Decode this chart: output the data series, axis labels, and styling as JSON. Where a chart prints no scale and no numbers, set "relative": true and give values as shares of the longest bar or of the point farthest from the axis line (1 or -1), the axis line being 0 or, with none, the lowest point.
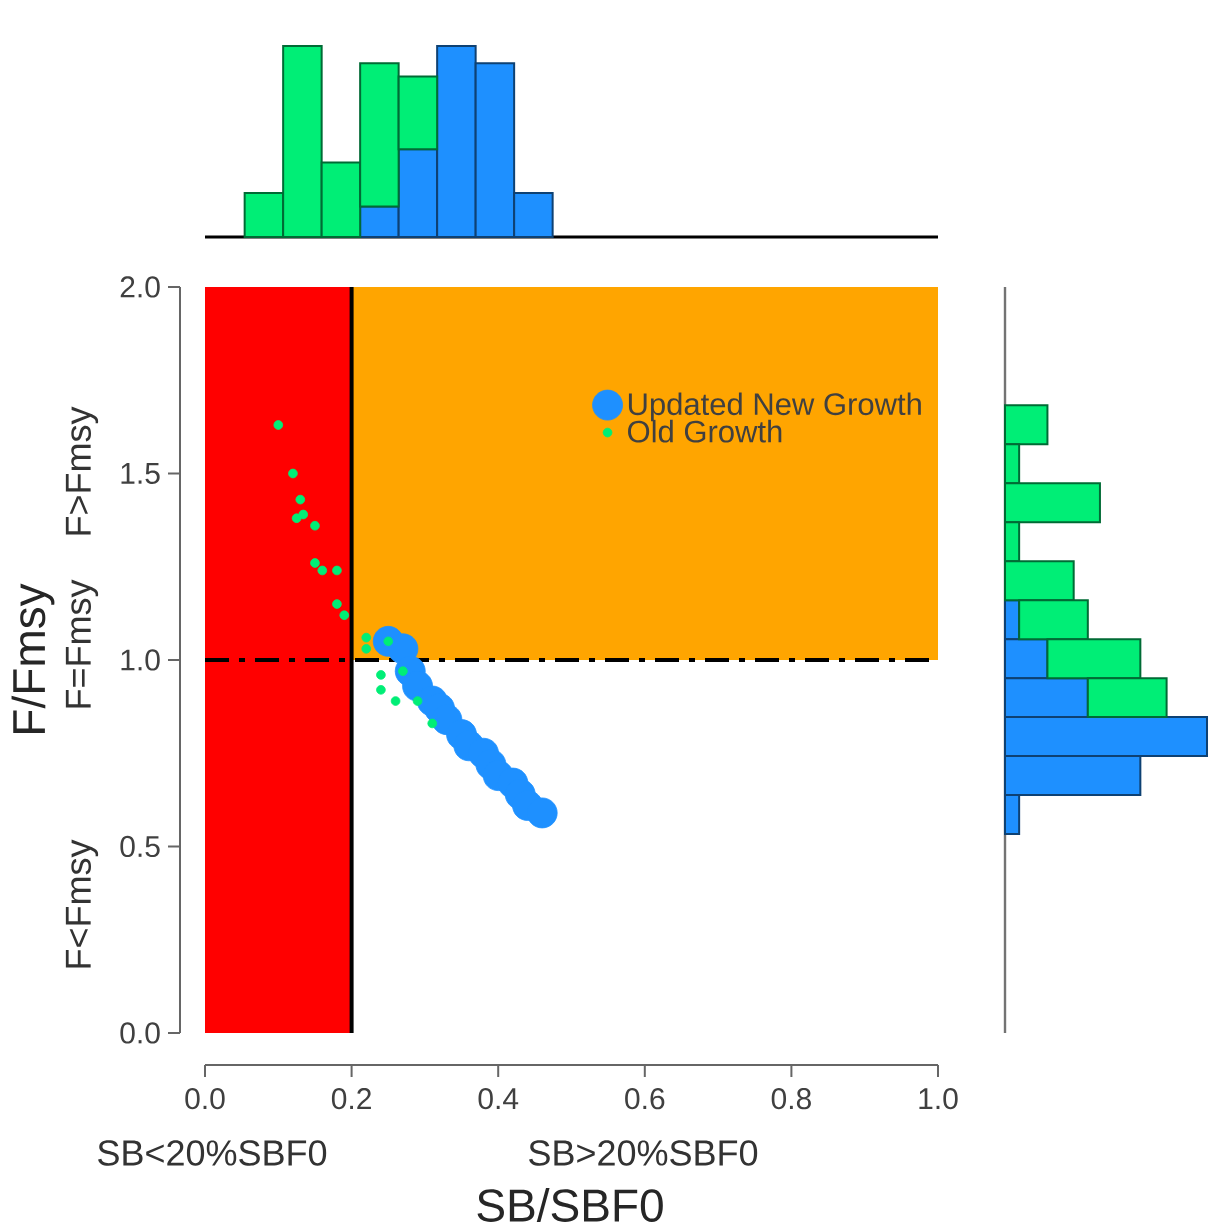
{
  "chart_data": [
    {
      "type": "scatter",
      "xlabel": "SB/SBF0",
      "ylabel": "F/Fmsy",
      "xlim": [
        0,
        1
      ],
      "ylim": [
        0,
        2
      ],
      "xticks": [
        {
          "value": 0,
          "label": "0.0"
        },
        {
          "value": 0.2,
          "label": "0.2"
        },
        {
          "value": 0.4,
          "label": "0.4"
        },
        {
          "value": 0.6,
          "label": "0.6"
        },
        {
          "value": 0.8,
          "label": "0.8"
        },
        {
          "value": 1,
          "label": "1.0"
        }
      ],
      "yticks": [
        {
          "value": 0,
          "label": "0.0"
        },
        {
          "value": 0.5,
          "label": "0.5"
        },
        {
          "value": 1,
          "label": "1.0"
        },
        {
          "value": 1.5,
          "label": "1.5"
        },
        {
          "value": 2,
          "label": "2.0"
        }
      ],
      "bands": [
        {
          "axis": "y",
          "from": 1,
          "to": 2,
          "color": "#ffa500"
        },
        {
          "axis": "x",
          "from": 0,
          "to": 0.2,
          "color": "#ff0000"
        }
      ],
      "ref_lines": [
        {
          "axis": "x",
          "value": 0.2,
          "color": "#000000",
          "line_style": "solid"
        },
        {
          "axis": "y",
          "value": 1,
          "color": "#000000",
          "line_style": "dashed"
        }
      ],
      "marker": "circle",
      "legend": "top right",
      "series": [
        {
          "name": "Updated New Growth",
          "color": "#1e90ff",
          "x": [
            0.25,
            0.27,
            0.28,
            0.29,
            0.31,
            0.32,
            0.33,
            0.35,
            0.36,
            0.38,
            0.39,
            0.4,
            0.42,
            0.43,
            0.44,
            0.46
          ],
          "values": [
            1.05,
            1.03,
            0.97,
            0.93,
            0.89,
            0.87,
            0.84,
            0.8,
            0.77,
            0.75,
            0.72,
            0.69,
            0.67,
            0.64,
            0.61,
            0.59
          ]
        },
        {
          "name": "Old Growth",
          "color": "#00ee76",
          "x": [
            0.1,
            0.12,
            0.13,
            0.134,
            0.125,
            0.15,
            0.15,
            0.16,
            0.18,
            0.18,
            0.19,
            0.22,
            0.22,
            0.25,
            0.24,
            0.24,
            0.26,
            0.27,
            0.29,
            0.31
          ],
          "values": [
            1.63,
            1.5,
            1.43,
            1.39,
            1.38,
            1.36,
            1.26,
            1.24,
            1.24,
            1.15,
            1.12,
            1.06,
            1.03,
            1.05,
            0.96,
            0.92,
            0.89,
            0.97,
            0.89,
            0.83
          ]
        }
      ],
      "annotations": [
        "F>Fmsy",
        "F=Fmsy",
        "F<Fmsy",
        "SB<20%SBF0",
        "SB>20%SBF0"
      ]
    },
    {
      "type": "bar",
      "relative": true,
      "stacked": true,
      "tick_labels": false,
      "categories": [
        null,
        null,
        null,
        null,
        null,
        null,
        null,
        null
      ],
      "series": [
        {
          "color": "#1e90ff",
          "values": [
            null,
            null,
            null,
            0.16,
            0.46,
            1,
            0.91,
            0.23
          ]
        },
        {
          "color": "#00ee76",
          "values": [
            0.23,
            1,
            0.39,
            0.75,
            0.38,
            null,
            null,
            null
          ]
        }
      ]
    },
    {
      "type": "bar",
      "relative": true,
      "stacked": true,
      "orientation": "horizontal",
      "tick_labels": false,
      "categories": [
        null,
        null,
        null,
        null,
        null,
        null,
        null,
        null,
        null,
        null,
        null
      ],
      "series": [
        {
          "color": "#1e90ff",
          "values": [
            null,
            null,
            null,
            null,
            null,
            0.07,
            0.21,
            0.41,
            1,
            0.67,
            0.07
          ]
        },
        {
          "color": "#00ee76",
          "values": [
            0.21,
            0.07,
            0.47,
            0.07,
            0.34,
            0.34,
            0.46,
            0.39,
            null,
            null,
            null
          ]
        }
      ]
    }
  ]
}
